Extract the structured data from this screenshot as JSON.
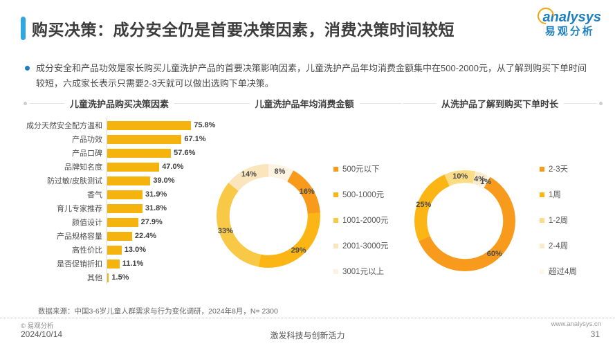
{
  "header": {
    "title": "购买决策：成分安全仍是首要决策因素，消费决策时间较短"
  },
  "logo": {
    "brand_en": "analysys",
    "brand_cn": "易观分析",
    "brand_color": "#1E7FC0",
    "swirl_color": "#F5A40B"
  },
  "summary": {
    "text": "成分安全和产品功效是家长购买儿童洗护产品的首要决策影响因素，儿童洗护产品年均消费金额集中在500-2000元，从了解到购买下单时间较短，六成家长表示只需要2-3天就可以做出选购下单决策。"
  },
  "chart_data": [
    {
      "type": "bar",
      "orientation": "horizontal",
      "title": "儿童洗护品购买决策因素",
      "categories": [
        "成分天然安全配方温和",
        "产品功效",
        "产品口碑",
        "品牌知名度",
        "防过敏/皮肤测试",
        "香气",
        "育儿专家推荐",
        "颜值设计",
        "产品规格容量",
        "高性价比",
        "是否促销折扣",
        "其他"
      ],
      "values": [
        75.8,
        67.1,
        57.6,
        47.0,
        39.0,
        31.9,
        31.8,
        27.9,
        22.4,
        13.0,
        11.1,
        1.5
      ],
      "unit": "%",
      "bar_color": "#F5B30D",
      "xlim": [
        0,
        80
      ],
      "grid": false
    },
    {
      "type": "pie",
      "donut": true,
      "title": "儿童洗护品年均消费金额",
      "start_angle": 28.8,
      "legend_position": "right",
      "series": [
        {
          "name": "500元以下",
          "value": 16,
          "color": "#F89B1C"
        },
        {
          "name": "500-1000元",
          "value": 29,
          "color": "#FBB616"
        },
        {
          "name": "1001-2000元",
          "value": 33,
          "color": "#F8C947"
        },
        {
          "name": "2001-3000元",
          "value": 14,
          "color": "#FAE5BD"
        },
        {
          "name": "3001元以上",
          "value": 8,
          "color": "#FDF3E2"
        }
      ]
    },
    {
      "type": "pie",
      "donut": true,
      "title": "从洗护品了解到购买下单时长",
      "start_angle": 30,
      "legend_position": "right",
      "series": [
        {
          "name": "2-3天",
          "value": 60,
          "color": "#F89B1C"
        },
        {
          "name": "1周",
          "value": 25,
          "color": "#FBB616"
        },
        {
          "name": "1-2周",
          "value": 10,
          "color": "#FCDC85"
        },
        {
          "name": "2-4周",
          "value": 4,
          "color": "#FAEBCB"
        },
        {
          "name": "超过4周",
          "value": 1,
          "color": "#FDF7EC"
        }
      ]
    }
  ],
  "source": {
    "text": "数据来源：中国3-6岁儿童人群需求与行为变化调研，2024年8月，N= 2300"
  },
  "footer": {
    "copyright": "© 易观分析",
    "website": "www.analysys.cn",
    "date": "2024/10/14",
    "slogan": "激发科技与创新活力",
    "page": "31"
  }
}
